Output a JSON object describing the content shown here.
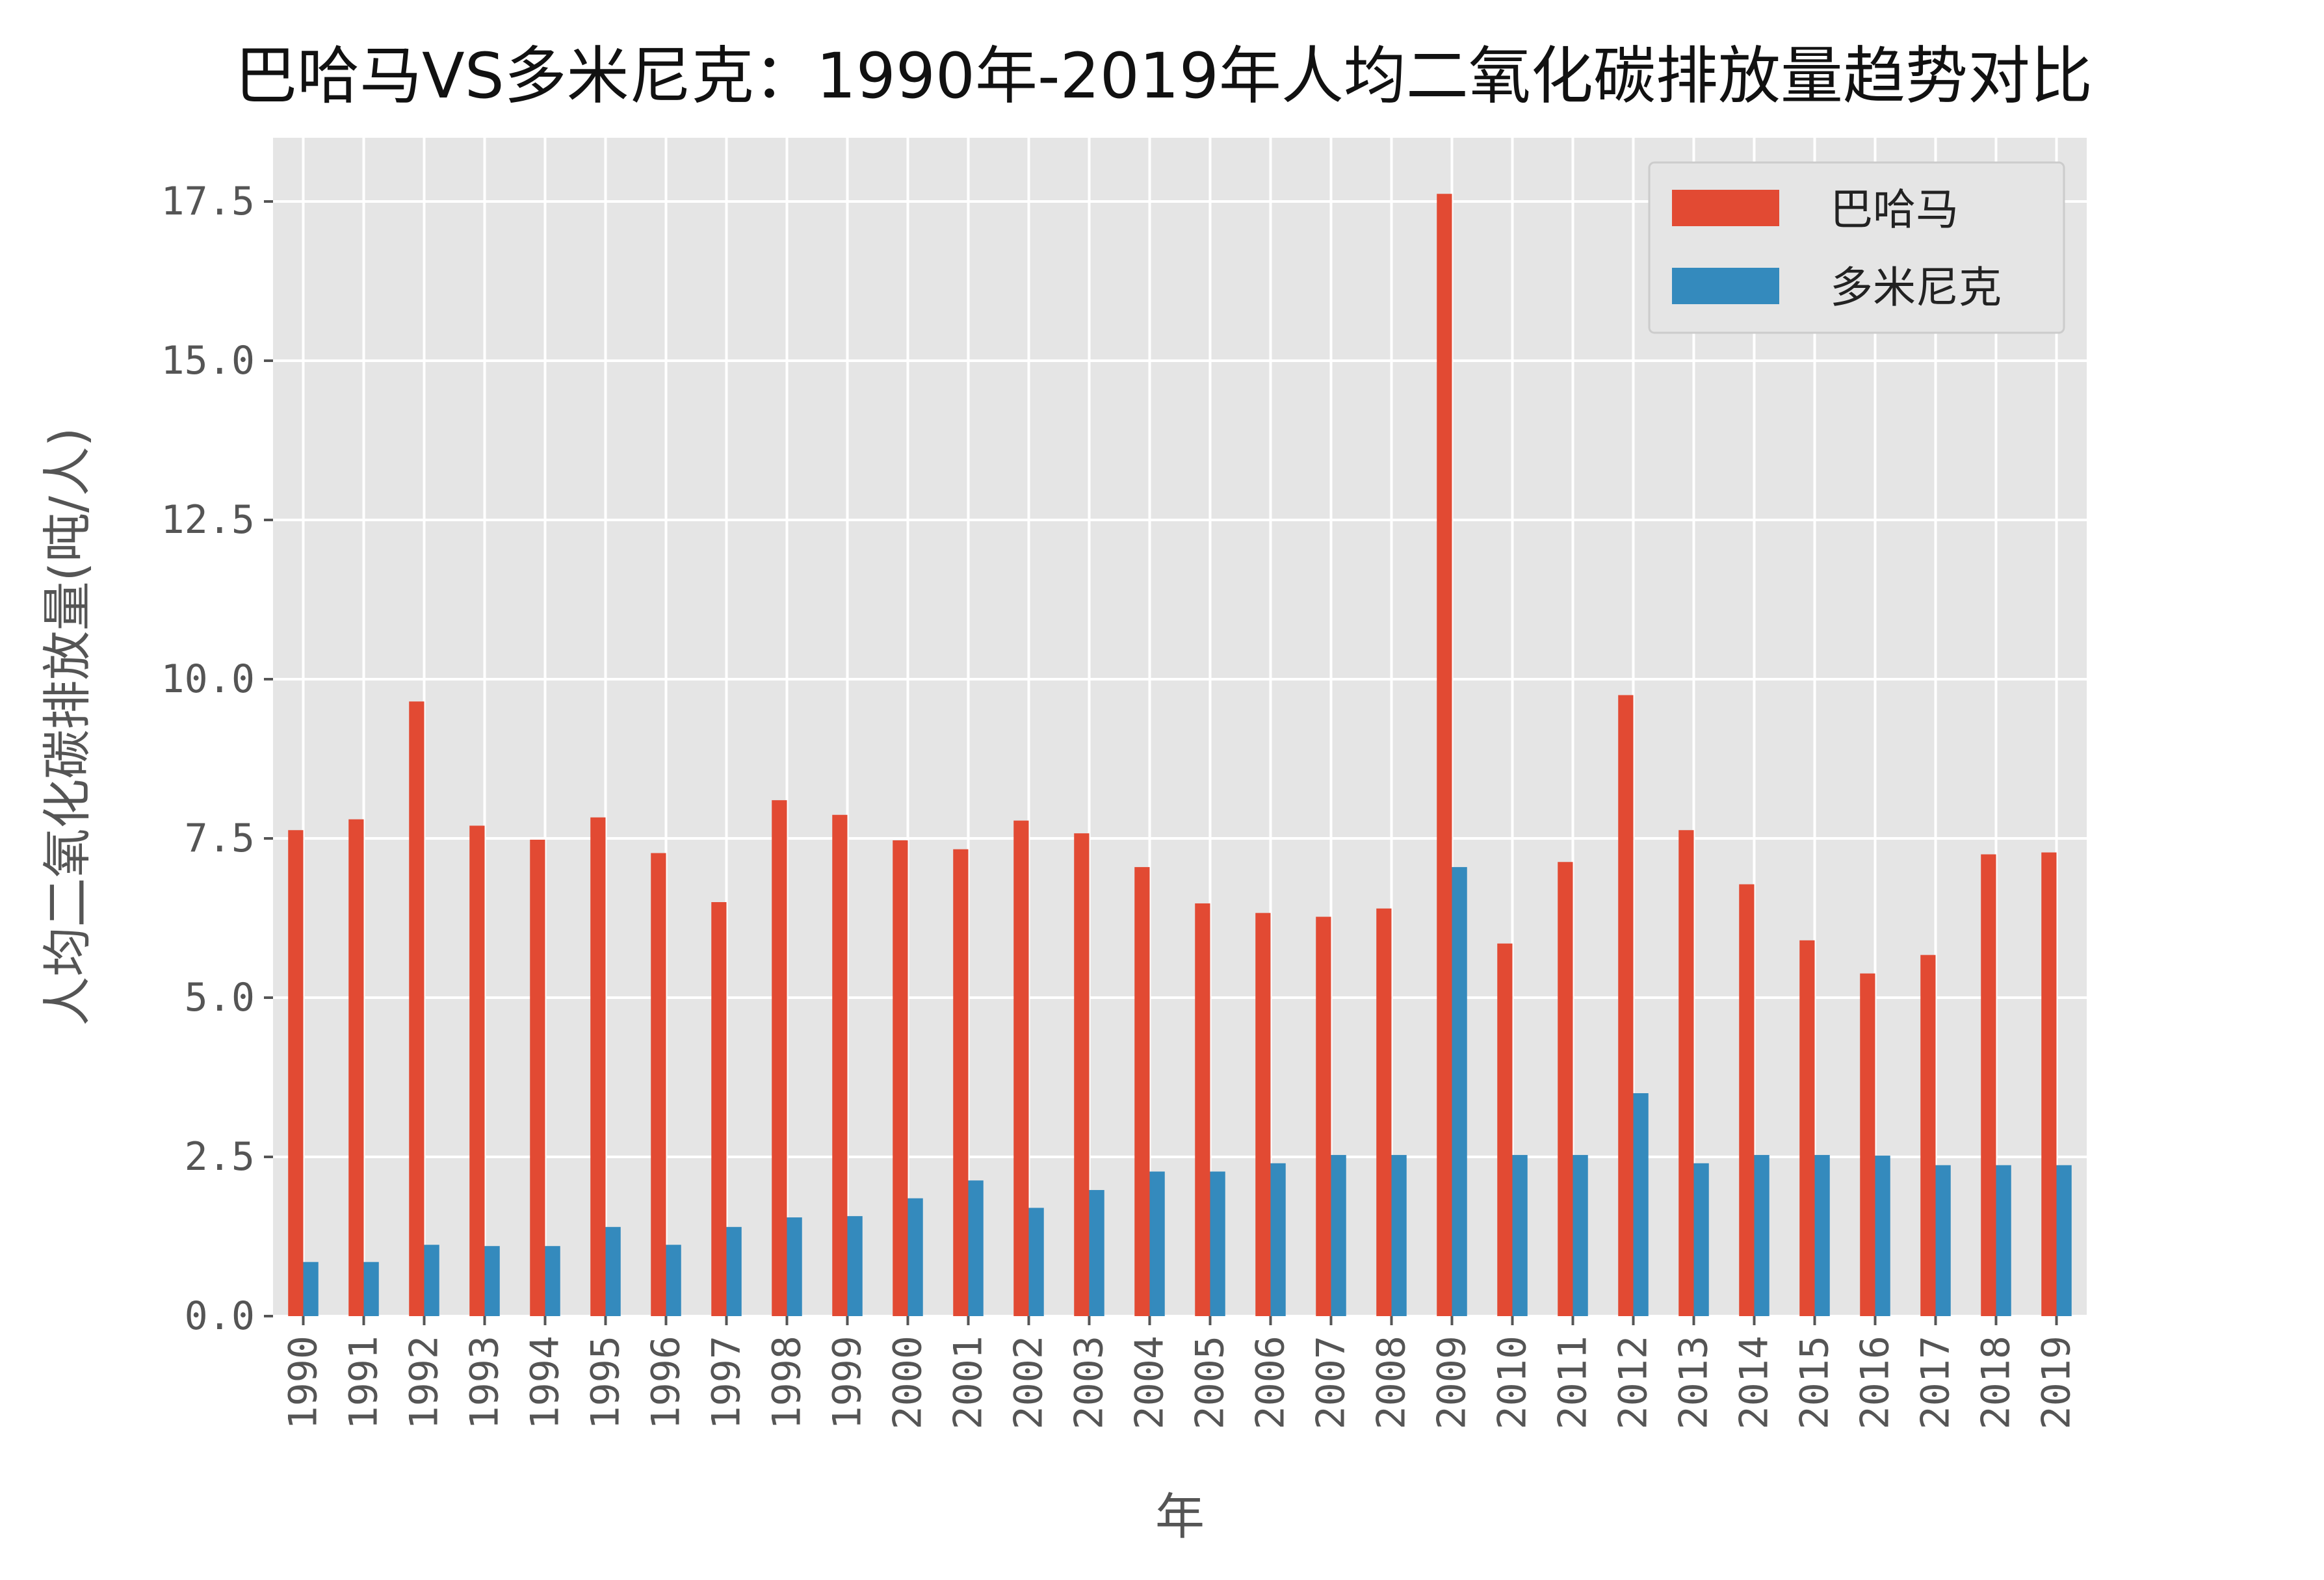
{
  "chart_data": {
    "type": "bar",
    "title": "巴哈马VS多米尼克：1990年-2019年人均二氧化碳排放量趋势对比",
    "xlabel": "年",
    "ylabel": "人均二氧化碳排放量(吨/人)",
    "ylim": [
      0,
      18.5
    ],
    "yticks": [
      "0.0",
      "2.5",
      "5.0",
      "7.5",
      "10.0",
      "12.5",
      "15.0",
      "17.5"
    ],
    "grid": true,
    "legend_position": "top-right",
    "categories": [
      "1990",
      "1991",
      "1992",
      "1993",
      "1994",
      "1995",
      "1996",
      "1997",
      "1998",
      "1999",
      "2000",
      "2001",
      "2002",
      "2003",
      "2004",
      "2005",
      "2006",
      "2007",
      "2008",
      "2009",
      "2010",
      "2011",
      "2012",
      "2013",
      "2014",
      "2015",
      "2016",
      "2017",
      "2018",
      "2019"
    ],
    "series": [
      {
        "name": "巴哈马",
        "color": "#E24A33",
        "values": [
          7.63,
          7.8,
          9.65,
          7.7,
          7.48,
          7.83,
          7.27,
          6.5,
          8.1,
          7.87,
          7.47,
          7.33,
          7.78,
          7.58,
          7.05,
          6.48,
          6.33,
          6.27,
          6.4,
          17.62,
          5.85,
          7.13,
          9.75,
          7.63,
          6.78,
          5.9,
          5.38,
          5.67,
          7.25,
          7.28
        ]
      },
      {
        "name": "多米尼克",
        "color": "#348ABD",
        "values": [
          0.85,
          0.85,
          1.12,
          1.1,
          1.1,
          1.4,
          1.12,
          1.4,
          1.55,
          1.57,
          1.85,
          2.13,
          1.7,
          1.98,
          2.27,
          2.27,
          2.4,
          2.53,
          2.53,
          7.05,
          2.53,
          2.53,
          3.5,
          2.4,
          2.53,
          2.53,
          2.52,
          2.37,
          2.37,
          2.37
        ]
      }
    ]
  }
}
